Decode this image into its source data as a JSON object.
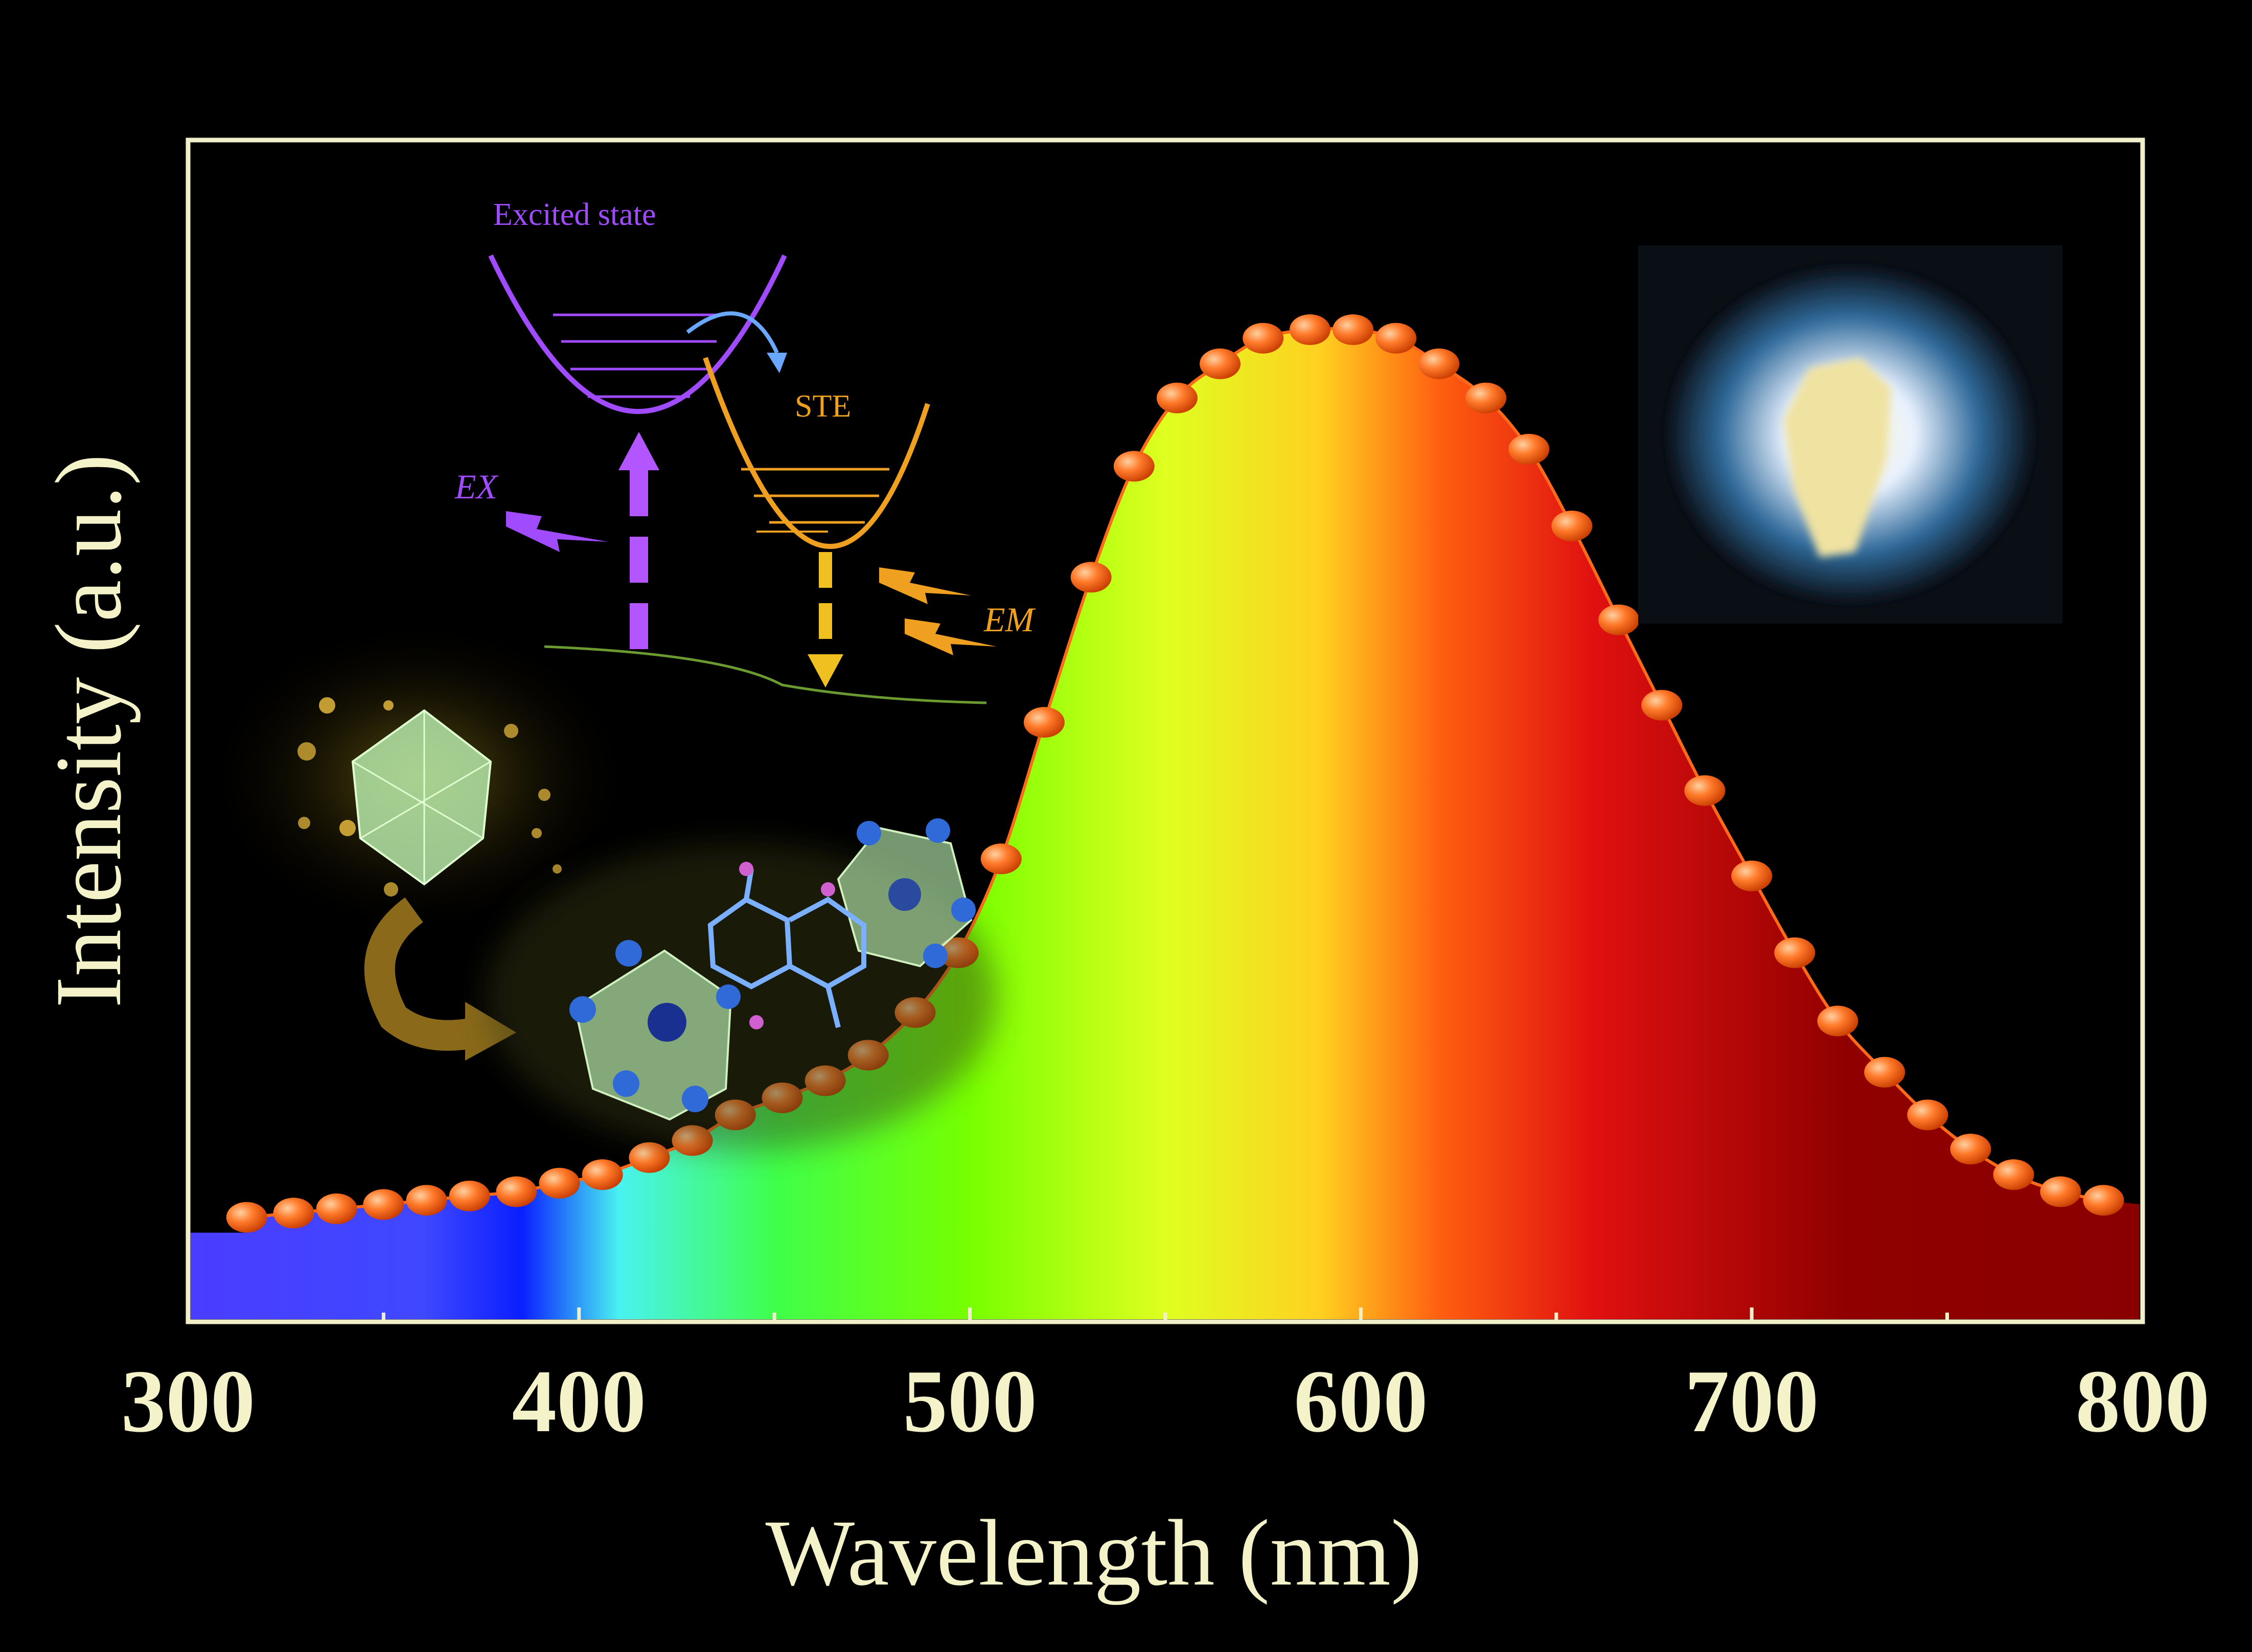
{
  "chart_data": {
    "type": "line",
    "xlabel": "Wavelength (nm)",
    "ylabel": "Intensity (a.u.)",
    "xlim": [
      300,
      800
    ],
    "ylim": [
      0,
      1.1
    ],
    "xticks": [
      300,
      400,
      500,
      600,
      700,
      800
    ],
    "grid": false,
    "legend": "none",
    "series": [
      {
        "x": [
          315,
          327,
          338,
          350,
          361,
          372,
          384,
          395,
          406,
          418,
          429,
          440,
          452,
          463,
          474,
          486,
          497,
          508,
          519,
          531,
          542,
          553,
          564,
          575,
          587,
          598,
          609,
          620,
          632,
          643,
          654,
          666,
          677,
          688,
          700,
          711,
          722,
          734,
          745,
          756,
          767,
          779,
          790
        ],
        "y": [
          0.02,
          0.025,
          0.03,
          0.035,
          0.04,
          0.045,
          0.05,
          0.06,
          0.07,
          0.09,
          0.11,
          0.14,
          0.16,
          0.18,
          0.21,
          0.26,
          0.33,
          0.44,
          0.6,
          0.77,
          0.9,
          0.98,
          1.02,
          1.05,
          1.06,
          1.06,
          1.05,
          1.02,
          0.98,
          0.92,
          0.83,
          0.72,
          0.62,
          0.52,
          0.42,
          0.33,
          0.25,
          0.19,
          0.14,
          0.1,
          0.07,
          0.05,
          0.04
        ],
        "color": "#ff6a1a"
      }
    ],
    "inset": {
      "excited_state": "Excited  state",
      "ste": "STE",
      "ex": "EX",
      "em": "EM"
    },
    "colors": {
      "frame": "#f1efc9",
      "text": "#f4f2c8",
      "marker": "#ff6a1a",
      "excited": "#a14bff",
      "ste": "#f0a020"
    }
  }
}
